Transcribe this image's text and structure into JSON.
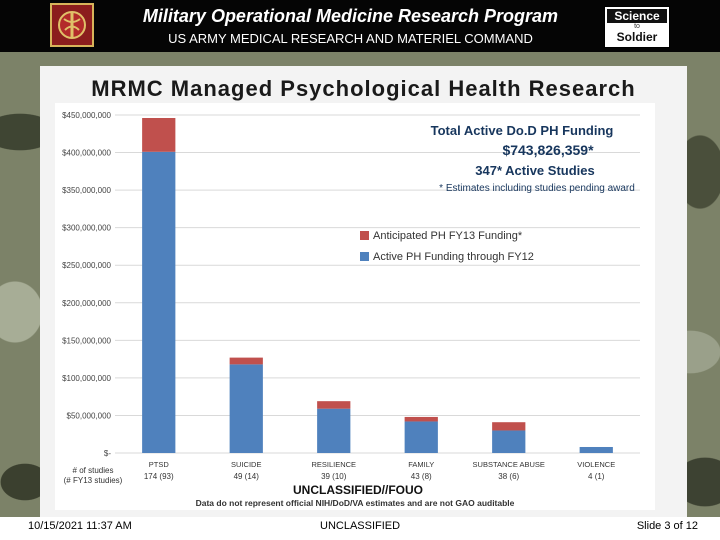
{
  "header": {
    "title": "Military Operational Medicine Research Program",
    "subtitle": "US ARMY MEDICAL RESEARCH AND MATERIEL COMMAND",
    "badge_top": "Science",
    "badge_mid": "to",
    "badge_bottom": "Soldier"
  },
  "slide_title": "MRMC Managed Psychological Health Research",
  "summary": {
    "line1": "Total Active Do.D PH Funding",
    "line2": "$743,826,359*",
    "line3": "347* Active Studies",
    "note": "* Estimates including studies pending award"
  },
  "chart_data": {
    "type": "bar",
    "stacked": true,
    "categories": [
      "PTSD",
      "SUICIDE",
      "RESILIENCE",
      "FAMILY",
      "SUBSTANCE ABUSE",
      "VIOLENCE"
    ],
    "category_counts": [
      "174 (93)",
      "49 (14)",
      "39 (10)",
      "43 (8)",
      "38 (6)",
      "4 (1)"
    ],
    "counts_label_line1": "# of studies",
    "counts_label_line2": "(# FY13 studies)",
    "series": [
      {
        "name": "Active PH Funding through FY12",
        "color": "#4f81bd",
        "values": [
          401000000,
          118000000,
          59000000,
          42000000,
          30000000,
          8000000
        ]
      },
      {
        "name": "Anticipated PH FY13 Funding*",
        "color": "#c0504d",
        "values": [
          45000000,
          9000000,
          10000000,
          6000000,
          11000000,
          0
        ]
      }
    ],
    "ylim": [
      0,
      450000000
    ],
    "yticks": [
      {
        "value": 450000000,
        "label": "$450,000,000"
      },
      {
        "value": 400000000,
        "label": "$400,000,000"
      },
      {
        "value": 350000000,
        "label": "$350,000,000"
      },
      {
        "value": 300000000,
        "label": "$300,000,000"
      },
      {
        "value": 250000000,
        "label": "$250,000,000"
      },
      {
        "value": 200000000,
        "label": "$200,000,000"
      },
      {
        "value": 150000000,
        "label": "$150,000,000"
      },
      {
        "value": 100000000,
        "label": "$100,000,000"
      },
      {
        "value": 50000000,
        "label": "$50,000,000"
      },
      {
        "value": 0,
        "label": "$-"
      }
    ],
    "grid": true,
    "legend": "right",
    "legend_entries": [
      "Anticipated PH FY13 Funding*",
      "Active PH Funding through FY12"
    ]
  },
  "classification": "UNCLASSIFIED//FOUO",
  "disclaimer": "Data do not represent official NIH/DoD/VA estimates and are not GAO auditable",
  "footer": {
    "date": "10/15/2021 11:37 AM",
    "classification": "UNCLASSIFIED",
    "slide": "Slide 3 of 12"
  },
  "colors": {
    "active": "#4f81bd",
    "anticipated": "#c0504d"
  }
}
